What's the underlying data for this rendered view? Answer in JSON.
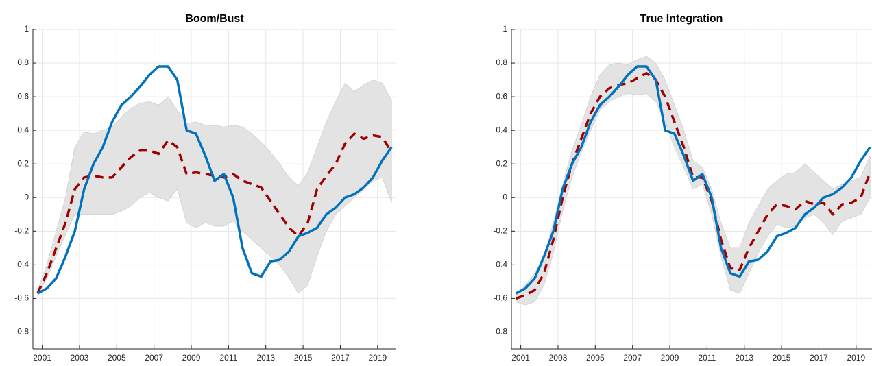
{
  "chart_data": [
    {
      "type": "line",
      "title": "Boom/Bust",
      "x": [
        2000.75,
        2001.25,
        2001.75,
        2002.25,
        2002.75,
        2003.25,
        2003.75,
        2004.25,
        2004.75,
        2005.25,
        2005.75,
        2006.25,
        2006.75,
        2007.25,
        2007.75,
        2008.25,
        2008.75,
        2009.25,
        2009.75,
        2010.25,
        2010.75,
        2011.25,
        2011.75,
        2012.25,
        2012.75,
        2013.25,
        2013.75,
        2014.25,
        2014.75,
        2015.25,
        2015.75,
        2016.25,
        2016.75,
        2017.25,
        2017.75,
        2018.25,
        2018.75,
        2019.25,
        2019.75
      ],
      "band": {
        "color": "#e3e3e3",
        "lower": [
          -0.58,
          -0.48,
          -0.35,
          -0.22,
          -0.1,
          -0.1,
          -0.1,
          -0.1,
          -0.1,
          -0.08,
          -0.05,
          0.0,
          0.03,
          0.0,
          -0.02,
          0.05,
          -0.15,
          -0.18,
          -0.15,
          -0.17,
          -0.17,
          -0.14,
          -0.2,
          -0.25,
          -0.3,
          -0.35,
          -0.4,
          -0.48,
          -0.57,
          -0.52,
          -0.35,
          -0.2,
          -0.1,
          -0.05,
          0.0,
          0.05,
          0.1,
          0.12,
          -0.03
        ],
        "upper": [
          -0.55,
          -0.4,
          -0.2,
          0.0,
          0.3,
          0.39,
          0.38,
          0.4,
          0.42,
          0.48,
          0.53,
          0.56,
          0.57,
          0.55,
          0.6,
          0.52,
          0.44,
          0.45,
          0.43,
          0.43,
          0.42,
          0.43,
          0.42,
          0.38,
          0.33,
          0.27,
          0.2,
          0.12,
          0.07,
          0.15,
          0.3,
          0.45,
          0.57,
          0.68,
          0.63,
          0.67,
          0.7,
          0.68,
          0.58
        ]
      },
      "series": [
        {
          "color": "#a00000",
          "dashed": true,
          "values": [
            -0.57,
            -0.45,
            -0.3,
            -0.15,
            0.05,
            0.12,
            0.13,
            0.12,
            0.12,
            0.18,
            0.24,
            0.28,
            0.28,
            0.26,
            0.34,
            0.3,
            0.14,
            0.15,
            0.14,
            0.13,
            0.12,
            0.14,
            0.1,
            0.08,
            0.06,
            -0.02,
            -0.1,
            -0.18,
            -0.23,
            -0.15,
            0.05,
            0.13,
            0.2,
            0.32,
            0.38,
            0.35,
            0.37,
            0.36,
            0.27
          ]
        },
        {
          "color": "#0072bd",
          "dashed": false,
          "values": [
            -0.57,
            -0.54,
            -0.48,
            -0.35,
            -0.2,
            0.05,
            0.2,
            0.3,
            0.45,
            0.55,
            0.6,
            0.66,
            0.73,
            0.78,
            0.78,
            0.7,
            0.4,
            0.38,
            0.25,
            0.1,
            0.14,
            0.0,
            -0.3,
            -0.45,
            -0.47,
            -0.38,
            -0.37,
            -0.32,
            -0.23,
            -0.21,
            -0.18,
            -0.1,
            -0.06,
            0.0,
            0.02,
            0.06,
            0.12,
            0.22,
            0.3
          ]
        }
      ],
      "xlim": [
        2000.5,
        2020
      ],
      "xticks": [
        2001,
        2003,
        2005,
        2007,
        2009,
        2011,
        2013,
        2015,
        2017,
        2019
      ],
      "ylim": [
        -0.9,
        1
      ],
      "yticks": [
        -0.8,
        -0.6,
        -0.4,
        -0.2,
        0,
        0.2,
        0.4,
        0.6,
        0.8,
        1
      ],
      "grid": true
    },
    {
      "type": "line",
      "title": "True Integration",
      "x": [
        2000.75,
        2001.25,
        2001.75,
        2002.25,
        2002.75,
        2003.25,
        2003.75,
        2004.25,
        2004.75,
        2005.25,
        2005.75,
        2006.25,
        2006.75,
        2007.25,
        2007.75,
        2008.25,
        2008.75,
        2009.25,
        2009.75,
        2010.25,
        2010.75,
        2011.25,
        2011.75,
        2012.25,
        2012.75,
        2013.25,
        2013.75,
        2014.25,
        2014.75,
        2015.25,
        2015.75,
        2016.25,
        2016.75,
        2017.25,
        2017.75,
        2018.25,
        2018.75,
        2019.25,
        2019.75
      ],
      "band": {
        "color": "#e3e3e3",
        "lower": [
          -0.62,
          -0.64,
          -0.62,
          -0.52,
          -0.33,
          -0.08,
          0.12,
          0.27,
          0.4,
          0.52,
          0.57,
          0.6,
          0.62,
          0.61,
          0.62,
          0.57,
          0.45,
          0.3,
          0.18,
          0.05,
          0.08,
          -0.1,
          -0.35,
          -0.55,
          -0.57,
          -0.45,
          -0.33,
          -0.23,
          -0.16,
          -0.18,
          -0.17,
          -0.12,
          -0.1,
          -0.15,
          -0.22,
          -0.14,
          -0.12,
          -0.1,
          0.0
        ],
        "upper": [
          -0.58,
          -0.52,
          -0.45,
          -0.35,
          -0.15,
          0.08,
          0.28,
          0.43,
          0.6,
          0.73,
          0.79,
          0.8,
          0.79,
          0.82,
          0.84,
          0.8,
          0.7,
          0.55,
          0.4,
          0.22,
          0.18,
          0.05,
          -0.15,
          -0.3,
          -0.3,
          -0.15,
          -0.05,
          0.05,
          0.1,
          0.14,
          0.15,
          0.2,
          0.15,
          0.1,
          0.05,
          0.08,
          0.1,
          0.12,
          0.25
        ]
      },
      "series": [
        {
          "color": "#a00000",
          "dashed": true,
          "values": [
            -0.6,
            -0.58,
            -0.55,
            -0.45,
            -0.25,
            0.0,
            0.2,
            0.35,
            0.5,
            0.6,
            0.65,
            0.67,
            0.68,
            0.71,
            0.74,
            0.7,
            0.6,
            0.45,
            0.3,
            0.12,
            0.12,
            -0.02,
            -0.25,
            -0.42,
            -0.43,
            -0.3,
            -0.2,
            -0.1,
            -0.04,
            -0.05,
            -0.07,
            -0.02,
            -0.04,
            -0.03,
            -0.1,
            -0.04,
            -0.03,
            0.0,
            0.15
          ]
        },
        {
          "color": "#0072bd",
          "dashed": false,
          "values": [
            -0.57,
            -0.54,
            -0.48,
            -0.35,
            -0.2,
            0.05,
            0.2,
            0.3,
            0.45,
            0.55,
            0.6,
            0.66,
            0.73,
            0.78,
            0.78,
            0.7,
            0.4,
            0.38,
            0.25,
            0.1,
            0.14,
            0.0,
            -0.3,
            -0.45,
            -0.47,
            -0.38,
            -0.37,
            -0.32,
            -0.23,
            -0.21,
            -0.18,
            -0.1,
            -0.06,
            0.0,
            0.02,
            0.06,
            0.12,
            0.22,
            0.3
          ]
        }
      ],
      "xlim": [
        2000.5,
        2020
      ],
      "xticks": [
        2001,
        2003,
        2005,
        2007,
        2009,
        2011,
        2013,
        2015,
        2017,
        2019
      ],
      "ylim": [
        -0.9,
        1
      ],
      "yticks": [
        -0.8,
        -0.6,
        -0.4,
        -0.2,
        0,
        0.2,
        0.4,
        0.6,
        0.8,
        1
      ],
      "grid": true
    }
  ]
}
